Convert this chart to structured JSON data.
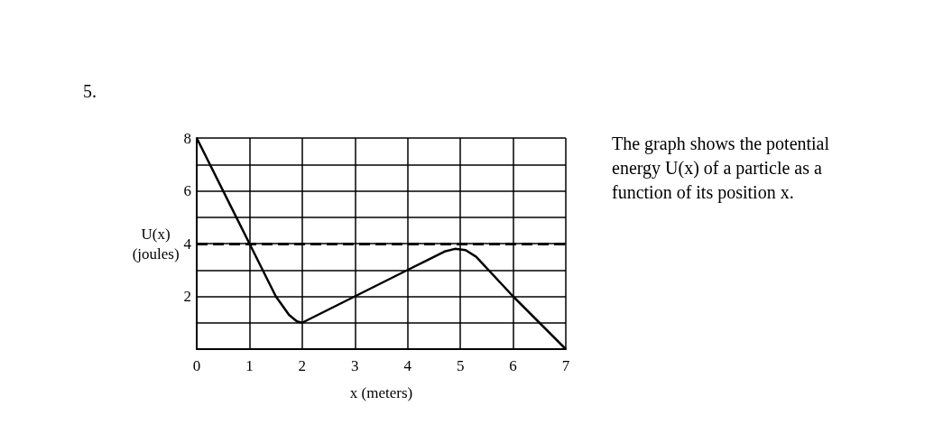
{
  "chart_data": {
    "type": "line",
    "xlabel": "x (meters)",
    "ylabel": "U(x)\n(joules)",
    "annotations": [
      "5.",
      "The graph shows the potential energy U(x) of a particle as a function of its position x."
    ],
    "x": [
      0,
      1,
      1.5,
      1.75,
      1.9,
      2,
      3,
      4,
      4.4,
      4.7,
      4.9,
      5.1,
      5.3,
      6,
      7
    ],
    "series": [
      {
        "color": "#000000",
        "values": [
          8,
          4,
          2,
          1.3,
          1.05,
          1,
          2,
          3,
          3.4,
          3.7,
          3.8,
          3.75,
          3.5,
          2,
          0
        ]
      }
    ],
    "xlim": [
      0,
      7
    ],
    "xticks": [
      0,
      1,
      2,
      3,
      4,
      5,
      6,
      7
    ],
    "ylim": [
      0,
      8
    ],
    "yticks": [
      {
        "value": 0,
        "label": null
      },
      {
        "value": 1,
        "label": null
      },
      2,
      {
        "value": 3,
        "label": null
      },
      4,
      {
        "value": 5,
        "label": null
      },
      6,
      {
        "value": 7,
        "label": null
      },
      8
    ],
    "ref_lines": [
      {
        "axis": "y",
        "value": 4,
        "line_style": "dashed",
        "color": "#000000"
      }
    ],
    "grid": true,
    "marker": "none",
    "line_style": "solid"
  }
}
